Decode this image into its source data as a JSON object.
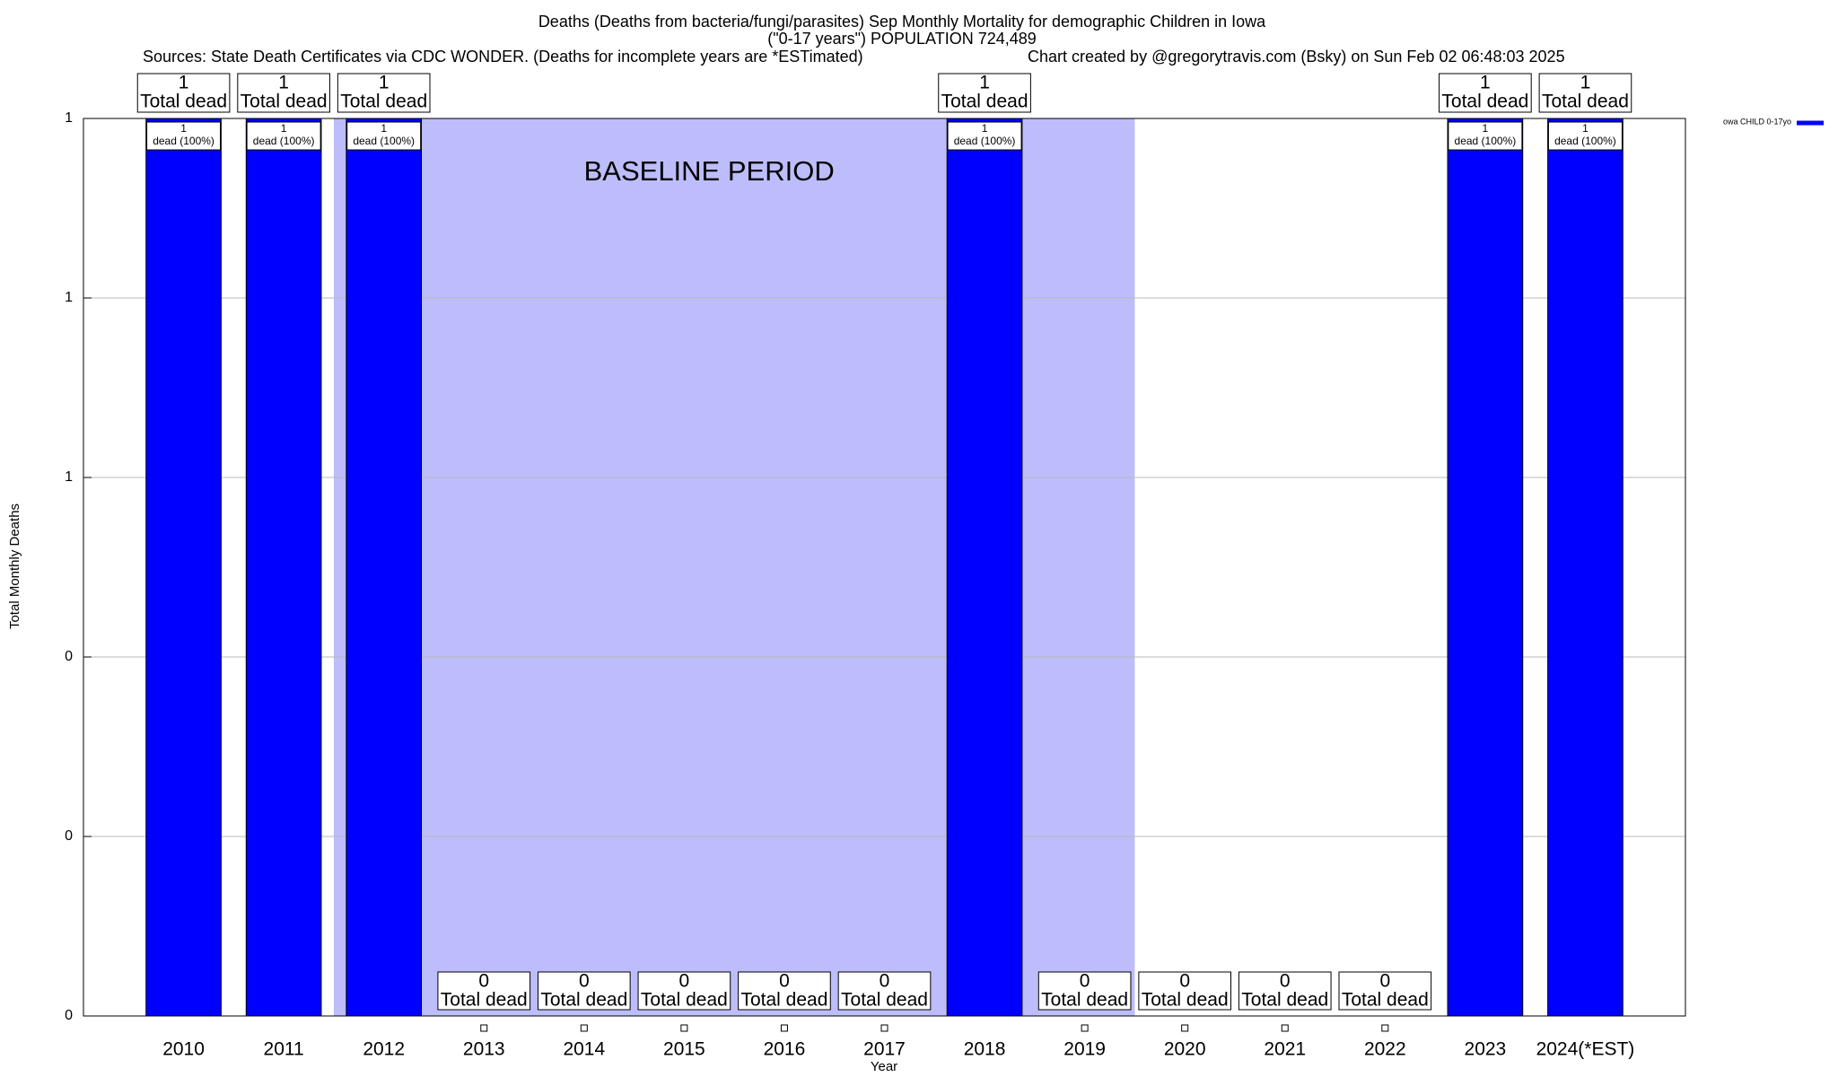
{
  "chart_data": {
    "type": "bar",
    "title": "Deaths (Deaths from bacteria/fungi/parasites) Sep Monthly Mortality for demographic Children in Iowa",
    "subtitle": "(\"0-17 years\") POPULATION 724,489",
    "source": "Sources: State Death Certificates via CDC WONDER. (Deaths for incomplete years are *ESTimated)",
    "credit": "Chart created by @gregorytravis.com (Bsky) on Sun Feb 02 06:48:03 2025",
    "x_label": "Year",
    "y_label": "Total Monthly Deaths",
    "categories": [
      "2010",
      "2011",
      "2012",
      "2013",
      "2014",
      "2015",
      "2016",
      "2017",
      "2018",
      "2019",
      "2020",
      "2021",
      "2022",
      "2023",
      "2024(*EST)"
    ],
    "series": [
      {
        "name": "owa CHILD 0-17yo",
        "color": "#0000ff",
        "values": [
          1,
          1,
          1,
          0,
          0,
          0,
          0,
          0,
          1,
          0,
          0,
          0,
          0,
          1,
          1
        ],
        "share_labels": [
          "dead (100%)",
          "dead (100%)",
          "dead (100%)",
          null,
          null,
          null,
          null,
          null,
          "dead (100%)",
          null,
          null,
          null,
          null,
          "dead (100%)",
          "dead (100%)"
        ]
      }
    ],
    "total_label": "Total dead",
    "baseline_period": {
      "label": "BASELINE PERIOD",
      "start": "2012",
      "end": "2019",
      "color": "#bdbdfb"
    },
    "ylim": [
      0,
      1
    ],
    "yticks": [
      0,
      {
        "value": 0.2,
        "label": "0"
      },
      {
        "value": 0.4,
        "label": "0"
      },
      {
        "value": 0.6,
        "label": "1"
      },
      {
        "value": 0.8,
        "label": "1"
      },
      1
    ],
    "grid": true,
    "legend": "top-right"
  }
}
